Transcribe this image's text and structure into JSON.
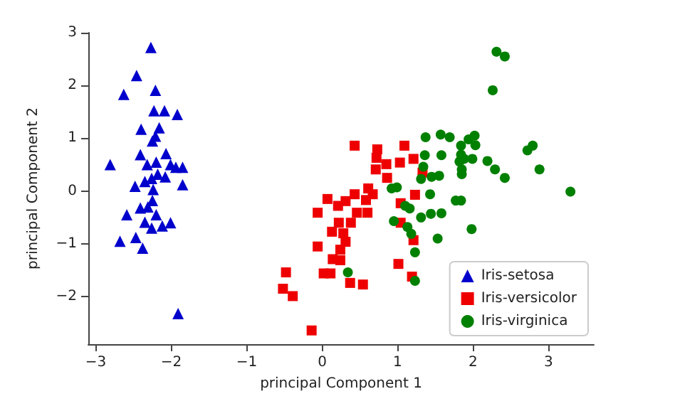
{
  "chart_data": {
    "type": "scatter",
    "xlabel": "principal Component 1",
    "ylabel": "principal Component 2",
    "xlim": [
      -3.1,
      3.6
    ],
    "ylim": [
      -2.9,
      3.0
    ],
    "xticks": [
      -3,
      -2,
      -1,
      0,
      1,
      2,
      3
    ],
    "yticks": [
      -2,
      -1,
      0,
      1,
      2,
      3
    ],
    "grid": false,
    "legend": "bottom right",
    "series": [
      {
        "name": "Iris-setosa",
        "color": "#0000cc",
        "marker": "triangle",
        "x": [
          -2.27,
          -2.46,
          -2.63,
          -2.21,
          -2.23,
          -2.09,
          -1.92,
          -2.4,
          -2.16,
          -2.21,
          -2.25,
          -2.41,
          -2.07,
          -2.81,
          -2.32,
          -2.2,
          -2.01,
          -1.94,
          -1.85,
          -2.18,
          -2.08,
          -2.26,
          -2.35,
          -2.48,
          -1.85,
          -2.24,
          -2.25,
          -2.41,
          -2.31,
          -2.59,
          -2.2,
          -2.35,
          -2.01,
          -2.26,
          -2.12,
          -2.47,
          -2.68,
          -2.38,
          -1.91
        ],
        "values": [
          2.72,
          2.19,
          1.83,
          1.91,
          1.52,
          1.52,
          1.45,
          1.17,
          1.2,
          1.04,
          0.95,
          0.69,
          0.71,
          0.5,
          0.5,
          0.55,
          0.5,
          0.45,
          0.45,
          0.32,
          0.27,
          0.24,
          0.18,
          0.09,
          0.12,
          0.03,
          -0.18,
          -0.32,
          -0.3,
          -0.45,
          -0.45,
          -0.59,
          -0.6,
          -0.7,
          -0.66,
          -0.88,
          -0.95,
          -1.08,
          -2.32
        ]
      },
      {
        "name": "Iris-versicolor",
        "color": "#ee0000",
        "marker": "square",
        "x": [
          0.43,
          0.73,
          1.09,
          0.72,
          0.85,
          1.03,
          1.21,
          0.71,
          0.86,
          1.33,
          0.61,
          0.43,
          0.67,
          0.58,
          0.07,
          0.31,
          0.21,
          1.23,
          1.04,
          -0.06,
          0.46,
          0.6,
          0.22,
          0.38,
          1.04,
          0.13,
          0.28,
          0.31,
          -0.06,
          0.24,
          1.21,
          0.14,
          0.24,
          1.01,
          0.02,
          0.11,
          -0.48,
          1.19,
          0.37,
          0.54,
          -0.52,
          -0.39,
          -0.14
        ],
        "values": [
          0.86,
          0.79,
          0.86,
          0.63,
          0.51,
          0.54,
          0.61,
          0.41,
          0.25,
          0.35,
          0.05,
          -0.06,
          -0.06,
          -0.17,
          -0.15,
          -0.19,
          -0.28,
          -0.07,
          -0.23,
          -0.41,
          -0.41,
          -0.41,
          -0.6,
          -0.6,
          -0.6,
          -0.77,
          -0.8,
          -0.96,
          -1.05,
          -1.11,
          -0.93,
          -1.29,
          -1.31,
          -1.38,
          -1.56,
          -1.56,
          -1.54,
          -1.62,
          -1.74,
          -1.77,
          -1.85,
          -1.99,
          -2.64
        ]
      },
      {
        "name": "Iris-virginica",
        "color": "#008000",
        "marker": "circle",
        "x": [
          2.31,
          2.42,
          2.26,
          1.37,
          1.57,
          1.69,
          1.84,
          1.94,
          2.02,
          2.03,
          1.36,
          1.58,
          1.84,
          1.88,
          1.99,
          1.82,
          2.19,
          2.72,
          2.79,
          2.88,
          2.29,
          2.42,
          1.85,
          1.85,
          1.34,
          1.31,
          1.45,
          1.55,
          3.29,
          0.92,
          0.99,
          1.43,
          1.77,
          1.84,
          1.1,
          1.16,
          1.58,
          1.44,
          1.31,
          0.95,
          1.13,
          1.18,
          1.53,
          1.98,
          1.23,
          0.34,
          1.23
        ],
        "values": [
          2.64,
          2.55,
          1.91,
          1.02,
          1.07,
          1.02,
          0.86,
          0.98,
          1.05,
          0.87,
          0.68,
          0.68,
          0.69,
          0.61,
          0.61,
          0.56,
          0.57,
          0.77,
          0.86,
          0.41,
          0.41,
          0.25,
          0.41,
          0.32,
          0.46,
          0.23,
          0.27,
          0.29,
          -0.01,
          0.05,
          0.07,
          -0.06,
          -0.18,
          -0.18,
          -0.28,
          -0.33,
          -0.42,
          -0.43,
          -0.5,
          -0.57,
          -0.68,
          -0.81,
          -0.9,
          -0.72,
          -1.16,
          -1.54,
          -1.7
        ]
      }
    ]
  }
}
